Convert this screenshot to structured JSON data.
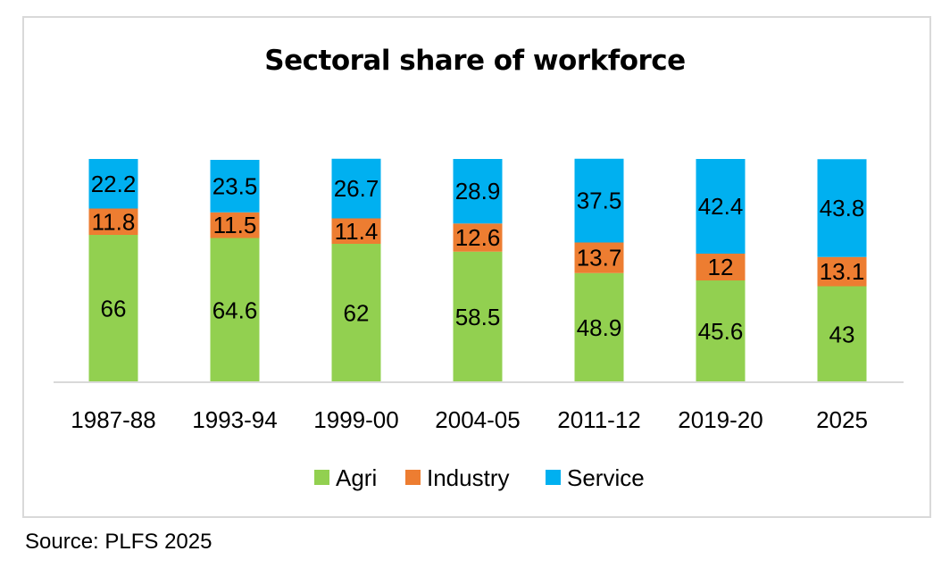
{
  "chart_data": {
    "type": "bar",
    "stacked": true,
    "title": "Sectoral share of workforce",
    "categories": [
      "1987-88",
      "1993-94",
      "1999-00",
      "2004-05",
      "2011-12",
      "2019-20",
      "2025"
    ],
    "series": [
      {
        "name": "Agri",
        "values": [
          66,
          64.6,
          62,
          58.5,
          48.9,
          45.6,
          43
        ],
        "color": "#92d050"
      },
      {
        "name": "Industry",
        "values": [
          11.8,
          11.5,
          11.4,
          12.6,
          13.7,
          12,
          13.1
        ],
        "color": "#ed7d31"
      },
      {
        "name": "Service",
        "values": [
          22.2,
          23.5,
          26.7,
          28.9,
          37.5,
          42.4,
          43.8
        ],
        "color": "#00b0f0"
      }
    ],
    "data_labels": true,
    "legend": "bottom",
    "grid": false,
    "xlabel": "",
    "ylabel": ""
  },
  "source": "Source: PLFS 2025"
}
